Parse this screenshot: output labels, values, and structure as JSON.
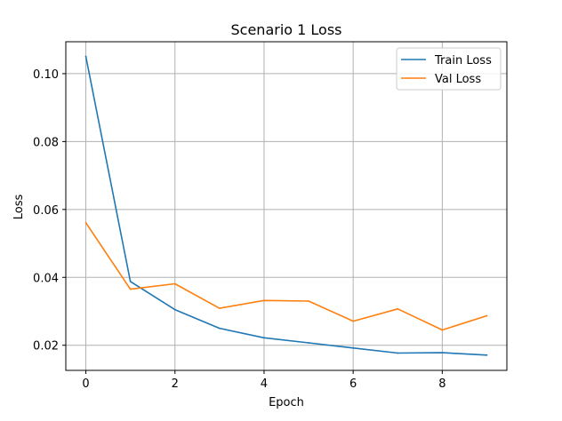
{
  "chart_data": {
    "type": "line",
    "title": "Scenario 1 Loss",
    "xlabel": "Epoch",
    "ylabel": "Loss",
    "xlim": [
      -0.45,
      9.45
    ],
    "ylim": [
      0.0126,
      0.1094
    ],
    "xticks": [
      0,
      2,
      4,
      6,
      8
    ],
    "yticks": [
      0.02,
      0.04,
      0.06,
      0.08,
      0.1
    ],
    "ytick_labels": [
      "0.02",
      "0.04",
      "0.06",
      "0.08",
      "0.10"
    ],
    "grid": true,
    "legend": "top-right",
    "x": [
      0,
      1,
      2,
      3,
      4,
      5,
      6,
      7,
      8,
      9
    ],
    "series": [
      {
        "name": "Train Loss",
        "color": "#1f77b4",
        "values": [
          0.1051,
          0.0388,
          0.0305,
          0.025,
          0.0222,
          0.0207,
          0.0192,
          0.0177,
          0.0178,
          0.0171
        ]
      },
      {
        "name": "Val Loss",
        "color": "#ff7f0e",
        "values": [
          0.0561,
          0.0365,
          0.0381,
          0.0309,
          0.0332,
          0.033,
          0.0271,
          0.0307,
          0.0245,
          0.0287
        ]
      }
    ]
  }
}
